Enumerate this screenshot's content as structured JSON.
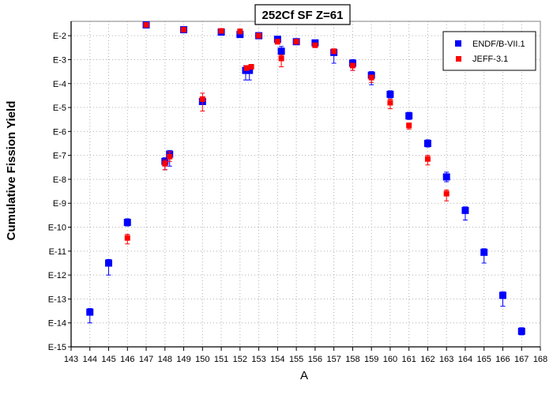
{
  "chart_data": {
    "type": "scatter",
    "title": "252Cf SF Z=61",
    "xlabel": "A",
    "ylabel": "Cumulative Fission Yield",
    "x_range": [
      143,
      168
    ],
    "x_ticks": [
      143,
      144,
      145,
      146,
      147,
      148,
      149,
      150,
      151,
      152,
      153,
      154,
      155,
      156,
      157,
      158,
      159,
      160,
      161,
      162,
      163,
      164,
      165,
      166,
      167,
      168
    ],
    "y_scale": "log",
    "y_exp_range": [
      -15,
      -1.4
    ],
    "y_ticks": [
      {
        "label": "E-2",
        "exp": -2
      },
      {
        "label": "E-3",
        "exp": -3
      },
      {
        "label": "E-4",
        "exp": -4
      },
      {
        "label": "E-5",
        "exp": -5
      },
      {
        "label": "E-6",
        "exp": -6
      },
      {
        "label": "E-7",
        "exp": -7
      },
      {
        "label": "E-8",
        "exp": -8
      },
      {
        "label": "E-9",
        "exp": -9
      },
      {
        "label": "E-10",
        "exp": -10
      },
      {
        "label": "E-11",
        "exp": -11
      },
      {
        "label": "E-12",
        "exp": -12
      },
      {
        "label": "E-13",
        "exp": -13
      },
      {
        "label": "E-14",
        "exp": -14
      },
      {
        "label": "E-15",
        "exp": -15
      }
    ],
    "grid": true,
    "legend_position": "top-right",
    "series": [
      {
        "name": "ENDF/B-VII.1",
        "color": "#0000ff",
        "points": [
          {
            "x": 144,
            "y_exp": -13.55,
            "err_lo": 0.45,
            "err_hi": 0.15
          },
          {
            "x": 145,
            "y_exp": -11.5,
            "err_lo": 0.5,
            "err_hi": 0.15
          },
          {
            "x": 146,
            "y_exp": -9.8,
            "err_lo": 0.15,
            "err_hi": 0.15
          },
          {
            "x": 147,
            "y_exp": -1.55,
            "err_lo": 0.05,
            "err_hi": 0.05
          },
          {
            "x": 148,
            "y_exp": -7.25,
            "err_lo": 0.35,
            "err_hi": 0.15
          },
          {
            "x": 148.25,
            "y_exp": -6.95,
            "err_lo": 0.5,
            "err_hi": 0.15
          },
          {
            "x": 149,
            "y_exp": -1.75,
            "err_lo": 0.05,
            "err_hi": 0.05
          },
          {
            "x": 150,
            "y_exp": -4.75,
            "err_lo": 0.1,
            "err_hi": 0.1
          },
          {
            "x": 151,
            "y_exp": -1.85,
            "err_lo": 0.05,
            "err_hi": 0.05
          },
          {
            "x": 152,
            "y_exp": -1.95,
            "err_lo": 0.05,
            "err_hi": 0.05
          },
          {
            "x": 152.3,
            "y_exp": -3.45,
            "err_lo": 0.4,
            "err_hi": 0.2
          },
          {
            "x": 152.5,
            "y_exp": -3.45,
            "err_lo": 0.4,
            "err_hi": 0.2
          },
          {
            "x": 153,
            "y_exp": -2.0,
            "err_lo": 0.05,
            "err_hi": 0.05
          },
          {
            "x": 154,
            "y_exp": -2.15,
            "err_lo": 0.1,
            "err_hi": 0.1
          },
          {
            "x": 154.2,
            "y_exp": -2.65,
            "err_lo": 0.2,
            "err_hi": 0.2
          },
          {
            "x": 155,
            "y_exp": -2.25,
            "err_lo": 0.1,
            "err_hi": 0.1
          },
          {
            "x": 156,
            "y_exp": -2.3,
            "err_lo": 0.1,
            "err_hi": 0.1
          },
          {
            "x": 157,
            "y_exp": -2.7,
            "err_lo": 0.45,
            "err_hi": 0.1
          },
          {
            "x": 158,
            "y_exp": -3.15,
            "err_lo": 0.3,
            "err_hi": 0.15
          },
          {
            "x": 159,
            "y_exp": -3.65,
            "err_lo": 0.4,
            "err_hi": 0.15
          },
          {
            "x": 160,
            "y_exp": -4.45,
            "err_lo": 0.15,
            "err_hi": 0.15
          },
          {
            "x": 161,
            "y_exp": -5.35,
            "err_lo": 0.15,
            "err_hi": 0.15
          },
          {
            "x": 162,
            "y_exp": -6.5,
            "err_lo": 0.15,
            "err_hi": 0.15
          },
          {
            "x": 163,
            "y_exp": -7.9,
            "err_lo": 0.2,
            "err_hi": 0.2
          },
          {
            "x": 164,
            "y_exp": -9.3,
            "err_lo": 0.4,
            "err_hi": 0.15
          },
          {
            "x": 165,
            "y_exp": -11.05,
            "err_lo": 0.45,
            "err_hi": 0.15
          },
          {
            "x": 166,
            "y_exp": -12.85,
            "err_lo": 0.45,
            "err_hi": 0.15
          },
          {
            "x": 167,
            "y_exp": -14.35,
            "err_lo": 0.15,
            "err_hi": 0.15
          }
        ]
      },
      {
        "name": "JEFF-3.1",
        "color": "#ff0000",
        "points": [
          {
            "x": 146,
            "y_exp": -10.45,
            "err_lo": 0.25,
            "err_hi": 0.15
          },
          {
            "x": 147,
            "y_exp": -1.55,
            "err_lo": 0.05,
            "err_hi": 0.05
          },
          {
            "x": 148,
            "y_exp": -7.35,
            "err_lo": 0.25,
            "err_hi": 0.15
          },
          {
            "x": 148.25,
            "y_exp": -7.05,
            "err_lo": 0.2,
            "err_hi": 0.2
          },
          {
            "x": 149,
            "y_exp": -1.75,
            "err_lo": 0.05,
            "err_hi": 0.05
          },
          {
            "x": 150,
            "y_exp": -4.65,
            "err_lo": 0.5,
            "err_hi": 0.25
          },
          {
            "x": 151,
            "y_exp": -1.8,
            "err_lo": 0.05,
            "err_hi": 0.05
          },
          {
            "x": 152,
            "y_exp": -1.82,
            "err_lo": 0.1,
            "err_hi": 0.05
          },
          {
            "x": 152.35,
            "y_exp": -3.35,
            "err_lo": 0.1,
            "err_hi": 0.1
          },
          {
            "x": 152.6,
            "y_exp": -3.3,
            "err_lo": 0.1,
            "err_hi": 0.1
          },
          {
            "x": 153,
            "y_exp": -2.0,
            "err_lo": 0.05,
            "err_hi": 0.05
          },
          {
            "x": 154,
            "y_exp": -2.25,
            "err_lo": 0.1,
            "err_hi": 0.1
          },
          {
            "x": 154.2,
            "y_exp": -2.95,
            "err_lo": 0.35,
            "err_hi": 0.15
          },
          {
            "x": 155,
            "y_exp": -2.25,
            "err_lo": 0.05,
            "err_hi": 0.05
          },
          {
            "x": 156,
            "y_exp": -2.4,
            "err_lo": 0.05,
            "err_hi": 0.05
          },
          {
            "x": 157,
            "y_exp": -2.65,
            "err_lo": 0.1,
            "err_hi": 0.1
          },
          {
            "x": 158,
            "y_exp": -3.25,
            "err_lo": 0.2,
            "err_hi": 0.1
          },
          {
            "x": 159,
            "y_exp": -3.75,
            "err_lo": 0.2,
            "err_hi": 0.1
          },
          {
            "x": 160,
            "y_exp": -4.8,
            "err_lo": 0.25,
            "err_hi": 0.15
          },
          {
            "x": 161,
            "y_exp": -5.75,
            "err_lo": 0.15,
            "err_hi": 0.1
          },
          {
            "x": 162,
            "y_exp": -7.15,
            "err_lo": 0.25,
            "err_hi": 0.15
          },
          {
            "x": 163,
            "y_exp": -8.6,
            "err_lo": 0.3,
            "err_hi": 0.15
          }
        ]
      }
    ]
  }
}
